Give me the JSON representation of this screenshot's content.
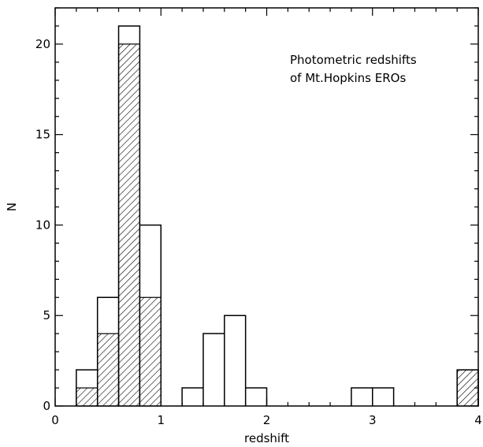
{
  "chart_data": {
    "type": "bar",
    "title": "",
    "xlabel": "redshift",
    "ylabel": "N",
    "xlim": [
      0,
      4
    ],
    "ylim": [
      0,
      22
    ],
    "xticks": [
      0,
      1,
      2,
      3,
      4
    ],
    "yticks": [
      0,
      5,
      10,
      15,
      20
    ],
    "xtick_labels": [
      "0",
      "1",
      "2",
      "3",
      "4"
    ],
    "ytick_labels": [
      "0",
      "5",
      "10",
      "15",
      "20"
    ],
    "bin_width": 0.2,
    "bin_edges": [
      0.2,
      0.4,
      0.6,
      0.8,
      1.0,
      1.2,
      1.4,
      1.6,
      1.8,
      2.0,
      2.2,
      2.4,
      2.6,
      2.8,
      3.0,
      3.2,
      3.4,
      3.6,
      3.8,
      4.0
    ],
    "series": [
      {
        "style": "outline",
        "values": [
          2,
          6,
          21,
          10,
          0,
          1,
          4,
          5,
          1,
          0,
          0,
          0,
          0,
          1,
          1,
          0,
          0,
          0,
          2
        ]
      },
      {
        "style": "hatched",
        "values": [
          1,
          4,
          20,
          6,
          0,
          0,
          0,
          0,
          0,
          0,
          0,
          0,
          0,
          0,
          0,
          0,
          0,
          0,
          2
        ]
      }
    ],
    "annotation": [
      "Photometric redshifts",
      "of Mt.Hopkins EROs"
    ],
    "grid": false,
    "legend": "none"
  }
}
